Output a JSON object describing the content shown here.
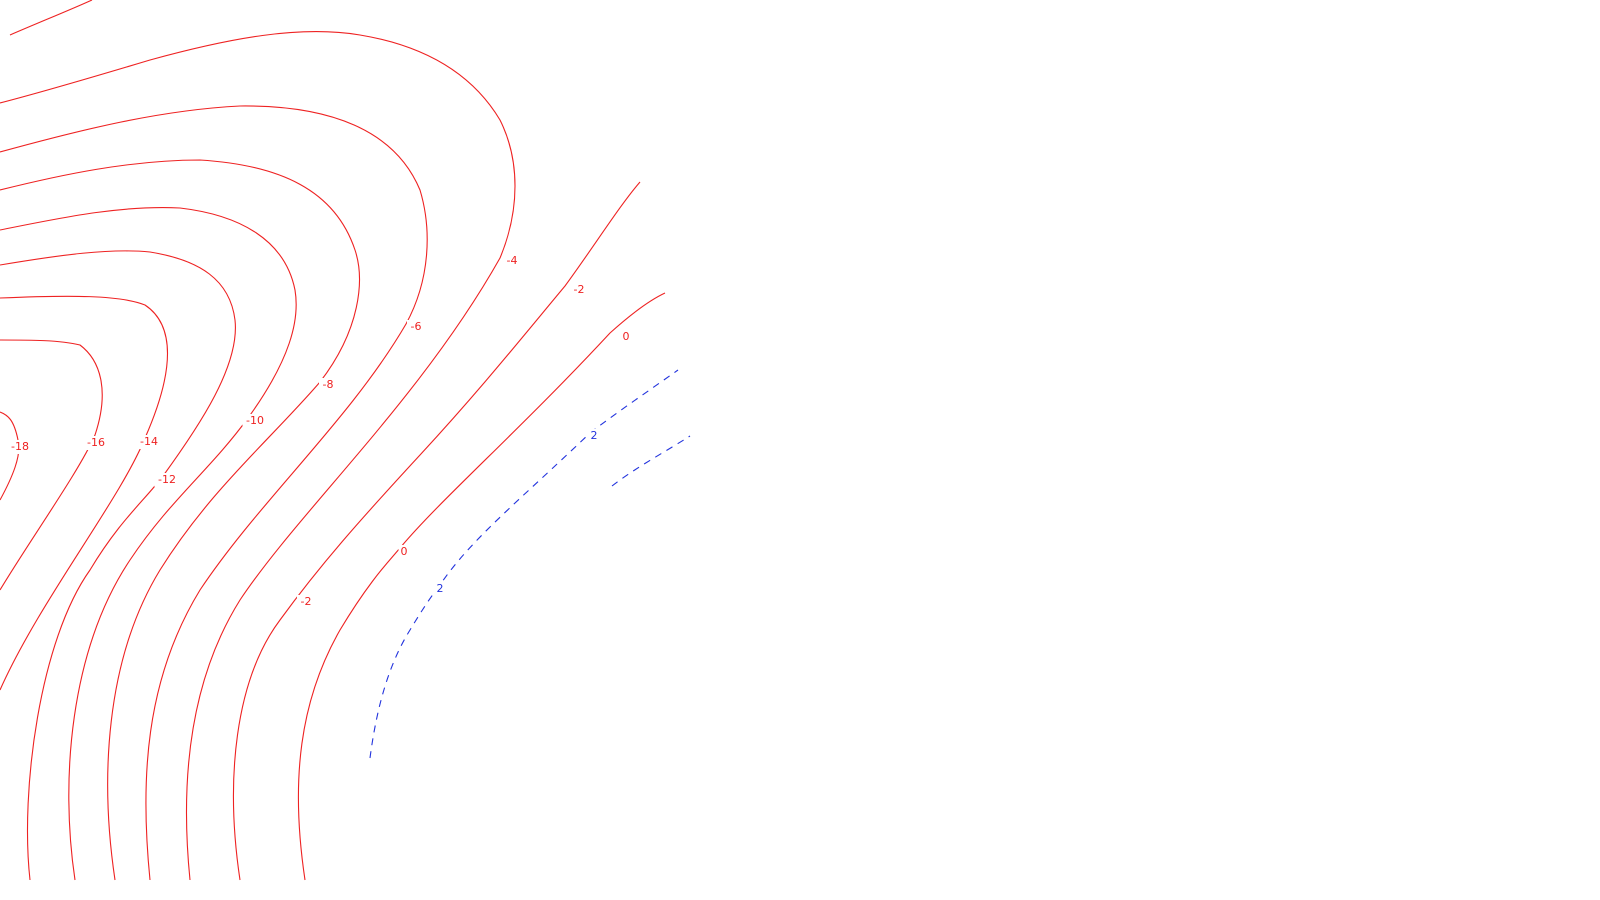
{
  "chart_data": {
    "type": "contour",
    "title": "",
    "xlabel": "",
    "ylabel": "",
    "colors": {
      "negative": "#ee2222",
      "positive": "#2233dd",
      "background": "#ffffff"
    },
    "levels": [
      -18,
      -16,
      -14,
      -12,
      -10,
      -8,
      -6,
      -4,
      -2,
      0,
      2
    ],
    "labels": [
      {
        "level": -18,
        "text": "-18"
      },
      {
        "level": -16,
        "text": "-16"
      },
      {
        "level": -14,
        "text": "-14"
      },
      {
        "level": -12,
        "text": "-12"
      },
      {
        "level": -10,
        "text": "-10"
      },
      {
        "level": -8,
        "text": "-8"
      },
      {
        "level": -6,
        "text": "-6"
      },
      {
        "level": -4,
        "text": "-4"
      },
      {
        "level": -2,
        "text": "-2"
      },
      {
        "level": -2,
        "text": "-2"
      },
      {
        "level": 0,
        "text": "0"
      },
      {
        "level": 0,
        "text": "0"
      },
      {
        "level": 2,
        "text": "2"
      },
      {
        "level": 2,
        "text": "2"
      }
    ]
  }
}
